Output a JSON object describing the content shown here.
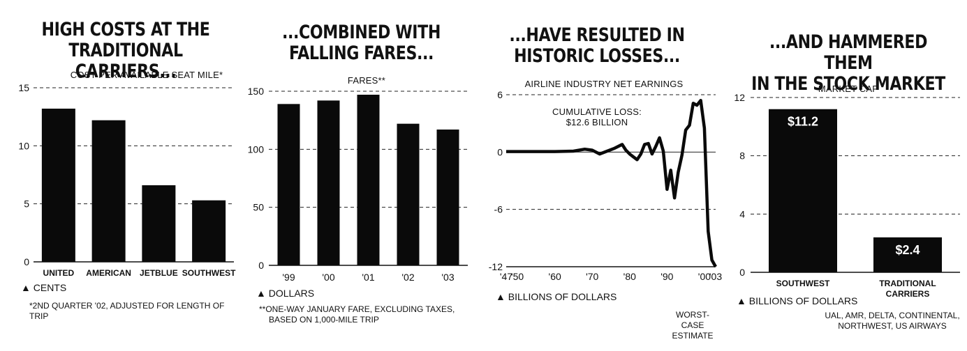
{
  "panels": [
    {
      "headline_lines": [
        "HIGH COSTS AT THE",
        "TRADITIONAL CARRIERS..."
      ],
      "subtitle": "COST PER AVAILABLE SEAT MILE*",
      "unit": "▲ CENTS",
      "footnote_lines": [
        "*2ND QUARTER '02, ADJUSTED FOR LENGTH OF TRIP"
      ]
    },
    {
      "headline_lines": [
        "...COMBINED WITH",
        "FALLING FARES..."
      ],
      "subtitle": "FARES**",
      "unit": "▲ DOLLARS",
      "footnote_lines": [
        "**ONE-WAY JANUARY FARE, EXCLUDING TAXES,",
        "BASED ON 1,000-MILE TRIP"
      ]
    },
    {
      "headline_lines": [
        "...HAVE RESULTED IN",
        "HISTORIC LOSSES..."
      ],
      "subtitle": "AIRLINE INDUSTRY NET EARNINGS",
      "unit": "▲ BILLIONS OF DOLLARS",
      "annotation_lines": [
        "CUMULATIVE LOSS:",
        "$12.6 BILLION"
      ],
      "footnote_lines": [
        "WORST-CASE",
        "ESTIMATE"
      ]
    },
    {
      "headline_lines": [
        "...AND HAMMERED THEM",
        "IN THE STOCK MARKET"
      ],
      "subtitle": "MARKET CAP",
      "unit": "▲ BILLIONS OF DOLLARS",
      "footnote_lines": [
        "UAL, AMR, DELTA, CONTINENTAL,",
        "NORTHWEST, US AIRWAYS"
      ]
    }
  ],
  "chart_data": [
    {
      "type": "bar",
      "title": "COST PER AVAILABLE SEAT MILE*",
      "ylabel": "CENTS",
      "categories": [
        "UNITED",
        "AMERICAN",
        "JETBLUE",
        "SOUTHWEST"
      ],
      "values": [
        13.2,
        12.2,
        6.6,
        5.3
      ],
      "ylim": [
        0,
        15
      ],
      "yticks": [
        "0",
        "5",
        "10",
        "15"
      ],
      "grid": true
    },
    {
      "type": "bar",
      "title": "FARES**",
      "ylabel": "DOLLARS",
      "categories": [
        "'99",
        "'00",
        "'01",
        "'02",
        "'03"
      ],
      "values": [
        139,
        142,
        147,
        122,
        117
      ],
      "ylim": [
        0,
        150
      ],
      "yticks": [
        "0",
        "50",
        "100",
        "150"
      ],
      "grid": true
    },
    {
      "type": "line",
      "title": "AIRLINE INDUSTRY NET EARNINGS",
      "ylabel": "BILLIONS OF DOLLARS",
      "xticks": [
        "'47",
        "'50",
        "'60",
        "'70",
        "'80",
        "'90",
        "'00",
        "'03"
      ],
      "yticks": [
        "-12",
        "-6",
        "0",
        "6"
      ],
      "ylim": [
        -12,
        6
      ],
      "xlim": [
        1947,
        2003
      ],
      "x": [
        1947,
        1950,
        1955,
        1960,
        1965,
        1968,
        1970,
        1972,
        1974,
        1976,
        1978,
        1979,
        1980,
        1981,
        1982,
        1983,
        1984,
        1985,
        1986,
        1987,
        1988,
        1989,
        1990,
        1991,
        1992,
        1993,
        1994,
        1995,
        1996,
        1997,
        1998,
        1999,
        2000,
        2001,
        2002,
        2003
      ],
      "y": [
        0.05,
        0.05,
        0.05,
        0.05,
        0.1,
        0.3,
        0.2,
        -0.2,
        0.1,
        0.4,
        0.8,
        0.2,
        -0.2,
        -0.5,
        -0.8,
        -0.2,
        0.8,
        0.9,
        -0.2,
        0.6,
        1.5,
        0.1,
        -3.9,
        -1.9,
        -4.8,
        -2.1,
        -0.3,
        2.3,
        2.8,
        5.1,
        4.9,
        5.4,
        2.5,
        -8.3,
        -11.3,
        -12.0
      ],
      "grid": true
    },
    {
      "type": "bar",
      "title": "MARKET CAP",
      "ylabel": "BILLIONS OF DOLLARS",
      "categories": [
        "SOUTHWEST",
        "TRADITIONAL CARRIERS"
      ],
      "values": [
        11.2,
        2.4
      ],
      "value_labels": [
        "$11.2",
        "$2.4"
      ],
      "ylim": [
        0,
        12
      ],
      "yticks": [
        "0",
        "4",
        "8",
        "12"
      ],
      "grid": true
    }
  ]
}
